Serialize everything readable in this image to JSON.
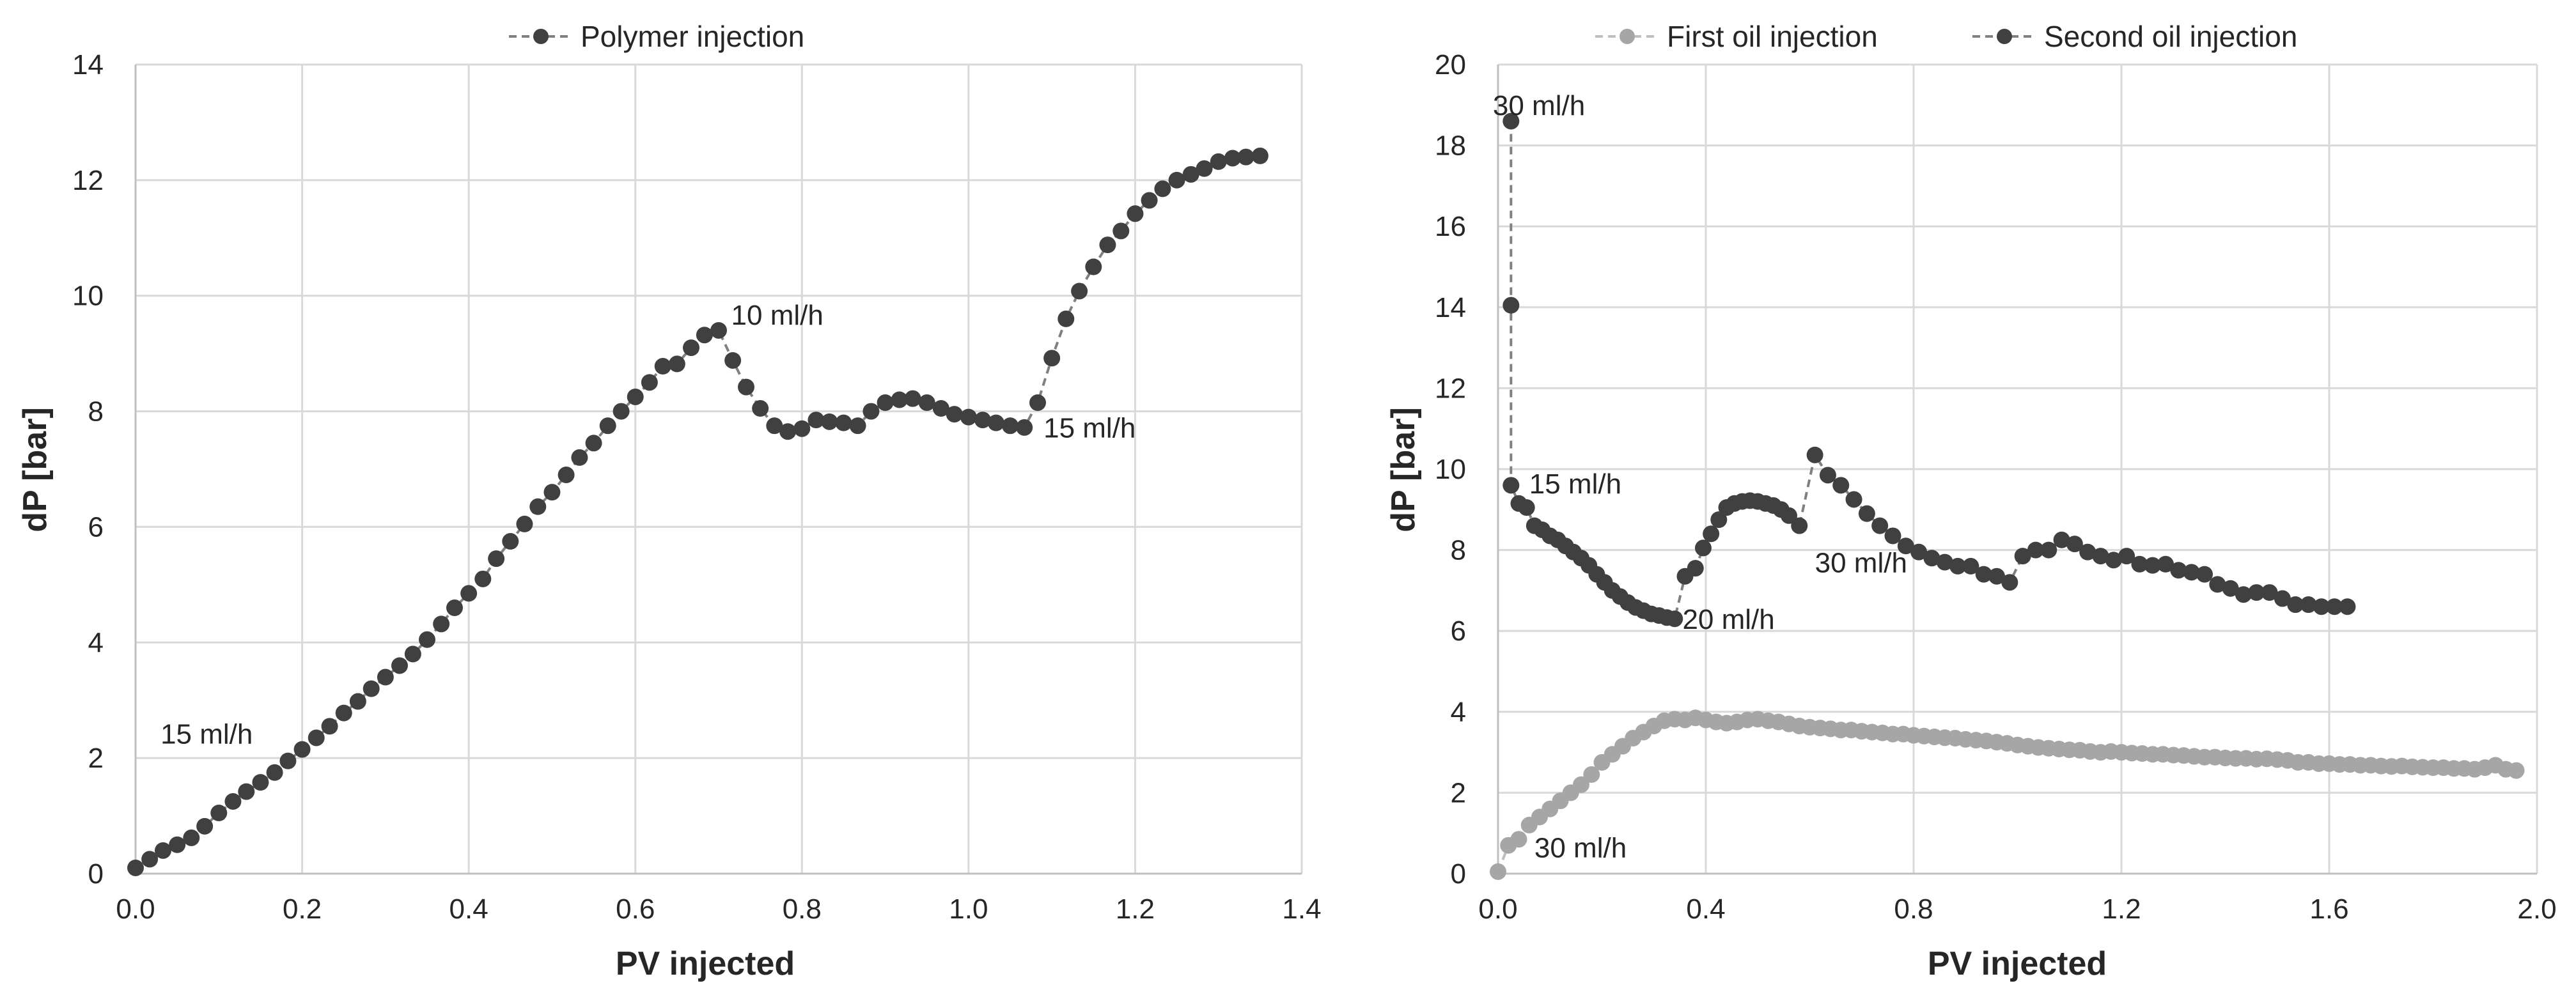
{
  "chart_data": [
    {
      "type": "line",
      "title": "",
      "xlabel": "PV injected",
      "ylabel": "dP [bar]",
      "xlim": [
        0,
        1.4
      ],
      "ylim": [
        0,
        14
      ],
      "xticks": [
        0.0,
        0.2,
        0.4,
        0.6,
        0.8,
        1.0,
        1.2,
        1.4
      ],
      "yticks": [
        0,
        2,
        4,
        6,
        8,
        10,
        12,
        14
      ],
      "xtick_labels": [
        "0.0",
        "0.2",
        "0.4",
        "0.6",
        "0.8",
        "1.0",
        "1.2",
        "1.4"
      ],
      "ytick_labels": [
        "0",
        "2",
        "4",
        "6",
        "8",
        "10",
        "12",
        "14"
      ],
      "grid": true,
      "legend_position": "top-center",
      "series": [
        {
          "name": "Polymer injection",
          "color": "#404040",
          "line_style": "dashed",
          "marker": "circle",
          "x": [
            0.0,
            0.017,
            0.033,
            0.05,
            0.067,
            0.083,
            0.1,
            0.117,
            0.133,
            0.15,
            0.167,
            0.183,
            0.2,
            0.217,
            0.233,
            0.25,
            0.267,
            0.283,
            0.3,
            0.317,
            0.333,
            0.35,
            0.367,
            0.383,
            0.4,
            0.417,
            0.433,
            0.45,
            0.467,
            0.483,
            0.5,
            0.517,
            0.533,
            0.55,
            0.567,
            0.583,
            0.6,
            0.617,
            0.633,
            0.65,
            0.667,
            0.683,
            0.7,
            0.717,
            0.733,
            0.75,
            0.767,
            0.783,
            0.8,
            0.817,
            0.833,
            0.85,
            0.867,
            0.883,
            0.9,
            0.917,
            0.933,
            0.95,
            0.967,
            0.983,
            1.0,
            1.017,
            1.033,
            1.05,
            1.067,
            1.083,
            1.1,
            1.117,
            1.133,
            1.15,
            1.167,
            1.183,
            1.2,
            1.217,
            1.233,
            1.25,
            1.267,
            1.283,
            1.3,
            1.317,
            1.333,
            1.35
          ],
          "y": [
            0.1,
            0.25,
            0.4,
            0.5,
            0.62,
            0.82,
            1.05,
            1.25,
            1.42,
            1.58,
            1.75,
            1.95,
            2.15,
            2.35,
            2.55,
            2.78,
            2.98,
            3.2,
            3.4,
            3.6,
            3.8,
            4.05,
            4.32,
            4.6,
            4.85,
            5.1,
            5.45,
            5.75,
            6.05,
            6.35,
            6.6,
            6.9,
            7.2,
            7.45,
            7.75,
            8.0,
            8.25,
            8.5,
            8.78,
            8.82,
            9.1,
            9.32,
            9.4,
            8.88,
            8.42,
            8.05,
            7.75,
            7.65,
            7.7,
            7.85,
            7.82,
            7.8,
            7.75,
            8.0,
            8.15,
            8.2,
            8.22,
            8.15,
            8.05,
            7.95,
            7.9,
            7.85,
            7.8,
            7.75,
            7.72,
            8.15,
            8.92,
            9.6,
            10.08,
            10.5,
            10.88,
            11.12,
            11.42,
            11.65,
            11.85,
            12.0,
            12.1,
            12.2,
            12.32,
            12.38,
            12.4,
            12.42
          ]
        }
      ],
      "annotations": [
        {
          "text": "15 ml/h",
          "x": 0.03,
          "y": 2.25
        },
        {
          "text": "10 ml/h",
          "x": 0.715,
          "y": 9.5
        },
        {
          "text": "15 ml/h",
          "x": 1.09,
          "y": 7.55
        }
      ]
    },
    {
      "type": "line",
      "title": "",
      "xlabel": "PV injected",
      "ylabel": "dP [bar]",
      "xlim": [
        0,
        2.0
      ],
      "ylim": [
        0,
        20
      ],
      "xticks": [
        0.0,
        0.4,
        0.8,
        1.2,
        1.6,
        2.0
      ],
      "yticks": [
        0,
        2,
        4,
        6,
        8,
        10,
        12,
        14,
        16,
        18,
        20
      ],
      "xtick_labels": [
        "0.0",
        "0.4",
        "0.8",
        "1.2",
        "1.6",
        "2.0"
      ],
      "ytick_labels": [
        "0",
        "2",
        "4",
        "6",
        "8",
        "10",
        "12",
        "14",
        "16",
        "18",
        "20"
      ],
      "grid": true,
      "legend_position": "top-center",
      "series": [
        {
          "name": "First oil injection",
          "color": "#a6a6a6",
          "line_style": "dashed",
          "marker": "circle",
          "x": [
            0.0,
            0.02,
            0.04,
            0.06,
            0.08,
            0.1,
            0.12,
            0.14,
            0.16,
            0.18,
            0.2,
            0.22,
            0.24,
            0.26,
            0.28,
            0.3,
            0.32,
            0.34,
            0.36,
            0.38,
            0.4,
            0.42,
            0.44,
            0.46,
            0.48,
            0.5,
            0.52,
            0.54,
            0.56,
            0.58,
            0.6,
            0.62,
            0.64,
            0.66,
            0.68,
            0.7,
            0.72,
            0.74,
            0.76,
            0.78,
            0.8,
            0.82,
            0.84,
            0.86,
            0.88,
            0.9,
            0.92,
            0.94,
            0.96,
            0.98,
            1.0,
            1.02,
            1.04,
            1.06,
            1.08,
            1.1,
            1.12,
            1.14,
            1.16,
            1.18,
            1.2,
            1.22,
            1.24,
            1.26,
            1.28,
            1.3,
            1.32,
            1.34,
            1.36,
            1.38,
            1.4,
            1.42,
            1.44,
            1.46,
            1.48,
            1.5,
            1.52,
            1.54,
            1.56,
            1.58,
            1.6,
            1.62,
            1.64,
            1.66,
            1.68,
            1.7,
            1.72,
            1.74,
            1.76,
            1.78,
            1.8,
            1.82,
            1.84,
            1.86,
            1.88,
            1.9,
            1.92,
            1.94,
            1.96
          ],
          "y": [
            0.05,
            0.7,
            0.85,
            1.2,
            1.4,
            1.6,
            1.8,
            2.0,
            2.2,
            2.45,
            2.75,
            2.95,
            3.15,
            3.35,
            3.5,
            3.65,
            3.78,
            3.82,
            3.8,
            3.85,
            3.8,
            3.75,
            3.72,
            3.75,
            3.8,
            3.82,
            3.78,
            3.75,
            3.7,
            3.65,
            3.62,
            3.6,
            3.58,
            3.55,
            3.55,
            3.52,
            3.5,
            3.48,
            3.45,
            3.45,
            3.42,
            3.4,
            3.38,
            3.36,
            3.35,
            3.32,
            3.3,
            3.28,
            3.25,
            3.22,
            3.18,
            3.15,
            3.12,
            3.1,
            3.08,
            3.06,
            3.05,
            3.02,
            3.0,
            3.02,
            3.0,
            2.98,
            2.97,
            2.95,
            2.95,
            2.93,
            2.92,
            2.9,
            2.88,
            2.88,
            2.86,
            2.85,
            2.85,
            2.83,
            2.84,
            2.82,
            2.8,
            2.75,
            2.75,
            2.72,
            2.72,
            2.7,
            2.7,
            2.68,
            2.68,
            2.66,
            2.65,
            2.66,
            2.64,
            2.63,
            2.62,
            2.62,
            2.6,
            2.6,
            2.58,
            2.62,
            2.68,
            2.58,
            2.55
          ]
        },
        {
          "name": "Second oil injection",
          "color": "#404040",
          "line_style": "dashed",
          "marker": "circle",
          "x": [
            0.025,
            0.025,
            0.025,
            0.04,
            0.055,
            0.07,
            0.085,
            0.1,
            0.115,
            0.13,
            0.145,
            0.16,
            0.175,
            0.19,
            0.205,
            0.22,
            0.235,
            0.25,
            0.265,
            0.28,
            0.295,
            0.31,
            0.325,
            0.34,
            0.36,
            0.38,
            0.395,
            0.41,
            0.425,
            0.44,
            0.455,
            0.47,
            0.485,
            0.5,
            0.515,
            0.53,
            0.545,
            0.56,
            0.58,
            0.61,
            0.635,
            0.66,
            0.685,
            0.71,
            0.735,
            0.76,
            0.785,
            0.81,
            0.835,
            0.86,
            0.885,
            0.91,
            0.935,
            0.96,
            0.985,
            1.01,
            1.035,
            1.06,
            1.085,
            1.11,
            1.135,
            1.16,
            1.185,
            1.21,
            1.235,
            1.26,
            1.285,
            1.31,
            1.335,
            1.36,
            1.385,
            1.41,
            1.435,
            1.46,
            1.485,
            1.51,
            1.535,
            1.56,
            1.585,
            1.61,
            1.635
          ],
          "y": [
            18.6,
            14.05,
            9.6,
            9.15,
            9.05,
            8.6,
            8.5,
            8.35,
            8.25,
            8.1,
            7.95,
            7.8,
            7.62,
            7.4,
            7.2,
            7.0,
            6.85,
            6.7,
            6.58,
            6.5,
            6.42,
            6.38,
            6.33,
            6.3,
            7.35,
            7.55,
            8.05,
            8.4,
            8.75,
            9.05,
            9.15,
            9.2,
            9.22,
            9.2,
            9.15,
            9.1,
            9.0,
            8.85,
            8.6,
            10.35,
            9.85,
            9.6,
            9.25,
            8.9,
            8.6,
            8.35,
            8.1,
            7.95,
            7.8,
            7.7,
            7.6,
            7.6,
            7.4,
            7.35,
            7.2,
            7.85,
            8.0,
            8.0,
            8.25,
            8.15,
            7.95,
            7.85,
            7.75,
            7.85,
            7.65,
            7.62,
            7.65,
            7.5,
            7.45,
            7.4,
            7.15,
            7.05,
            6.9,
            6.95,
            6.95,
            6.8,
            6.65,
            6.65,
            6.6,
            6.6,
            6.6
          ]
        }
      ],
      "annotations": [
        {
          "text": "30 ml/h",
          "x": -0.01,
          "y": 18.75
        },
        {
          "text": "15 ml/h",
          "x": 0.06,
          "y": 9.4
        },
        {
          "text": "20 ml/h",
          "x": 0.355,
          "y": 6.05
        },
        {
          "text": "30 ml/h",
          "x": 0.61,
          "y": 7.45
        },
        {
          "text": "30 ml/h",
          "x": 0.07,
          "y": 0.4
        }
      ]
    }
  ]
}
